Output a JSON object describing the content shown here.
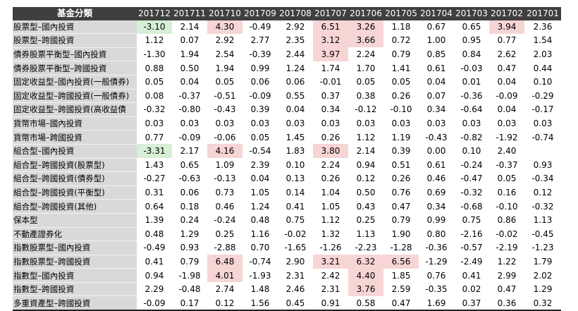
{
  "table": {
    "header_label": "基金分類",
    "periods": [
      "201712",
      "201711",
      "201710",
      "201709",
      "201708",
      "201707",
      "201706",
      "201705",
      "201704",
      "201703",
      "201702",
      "201701"
    ],
    "colors": {
      "high_bg": "#f7d5d5",
      "high_text": "#c00000",
      "low_bg": "#d6efd6",
      "low_text": "#1e7d1e"
    },
    "rows": [
      {
        "category": "股票型–國內投資",
        "values": [
          "-3.10",
          "2.14",
          "4.30",
          "-0.49",
          "2.92",
          "6.51",
          "3.26",
          "1.18",
          "0.67",
          "0.65",
          "3.94",
          "2.36"
        ],
        "marks": [
          "n",
          "",
          "p",
          "",
          "",
          "p",
          "p",
          "",
          "",
          "",
          "p",
          ""
        ]
      },
      {
        "category": "股票型–跨國投資",
        "values": [
          "1.12",
          "0.07",
          "2.92",
          "2.77",
          "2.35",
          "3.12",
          "3.66",
          "0.72",
          "1.00",
          "0.95",
          "0.77",
          "1.54"
        ],
        "marks": [
          "",
          "",
          "",
          "",
          "",
          "p",
          "p",
          "",
          "",
          "",
          "",
          ""
        ]
      },
      {
        "category": "債券股票平衡型–國內投資",
        "values": [
          "-1.30",
          "1.94",
          "2.54",
          "-0.39",
          "2.44",
          "3.97",
          "2.24",
          "0.79",
          "0.85",
          "0.84",
          "2.62",
          "2.03"
        ],
        "marks": [
          "",
          "",
          "",
          "",
          "",
          "p",
          "",
          "",
          "",
          "",
          "",
          ""
        ]
      },
      {
        "category": "債券股票平衡型–跨國投資",
        "values": [
          "0.88",
          "0.50",
          "1.94",
          "0.99",
          "1.24",
          "1.74",
          "1.70",
          "1.41",
          "0.61",
          "-0.03",
          "0.47",
          "0.44"
        ],
        "marks": [
          "",
          "",
          "",
          "",
          "",
          "",
          "",
          "",
          "",
          "",
          "",
          ""
        ]
      },
      {
        "category": "固定收益型–國內投資(一般債券)",
        "values": [
          "0.05",
          "0.04",
          "0.05",
          "0.06",
          "0.06",
          "-0.01",
          "0.05",
          "0.05",
          "0.04",
          "0.01",
          "0.04",
          "0.10"
        ],
        "marks": [
          "",
          "",
          "",
          "",
          "",
          "",
          "",
          "",
          "",
          "",
          "",
          ""
        ]
      },
      {
        "category": "固定收益型–跨國投資(一般債券)",
        "values": [
          "0.08",
          "-0.37",
          "-0.51",
          "-0.09",
          "0.55",
          "0.37",
          "0.38",
          "0.26",
          "0.07",
          "-0.36",
          "-0.09",
          "-0.29"
        ],
        "marks": [
          "",
          "",
          "",
          "",
          "",
          "",
          "",
          "",
          "",
          "",
          "",
          ""
        ]
      },
      {
        "category": "固定收益型–跨國投資(高收益債",
        "values": [
          "-0.32",
          "-0.80",
          "-0.43",
          "0.39",
          "0.04",
          "0.34",
          "-0.12",
          "-0.10",
          "0.34",
          "-0.64",
          "0.04",
          "-0.17"
        ],
        "marks": [
          "",
          "",
          "",
          "",
          "",
          "",
          "",
          "",
          "",
          "",
          "",
          ""
        ]
      },
      {
        "category": "貨幣市場–國內投資",
        "values": [
          "0.03",
          "0.03",
          "0.03",
          "0.03",
          "0.03",
          "0.03",
          "0.03",
          "0.03",
          "0.03",
          "0.03",
          "0.03",
          "0.03"
        ],
        "marks": [
          "",
          "",
          "",
          "",
          "",
          "",
          "",
          "",
          "",
          "",
          "",
          ""
        ]
      },
      {
        "category": "貨幣市場–跨國投資",
        "values": [
          "0.77",
          "-0.09",
          "-0.06",
          "0.05",
          "1.45",
          "0.26",
          "1.12",
          "1.19",
          "-0.43",
          "-0.82",
          "-1.92",
          "-0.74"
        ],
        "marks": [
          "",
          "",
          "",
          "",
          "",
          "",
          "",
          "",
          "",
          "",
          "",
          ""
        ]
      },
      {
        "category": "組合型–國內投資",
        "values": [
          "-3.31",
          "2.17",
          "4.16",
          "-0.54",
          "1.83",
          "3.80",
          "2.14",
          "0.39",
          "0.00",
          "0.10",
          "2.40",
          ""
        ],
        "marks": [
          "n",
          "",
          "p",
          "",
          "",
          "p",
          "",
          "",
          "",
          "",
          "",
          ""
        ]
      },
      {
        "category": "組合型–跨國投資(股票型)",
        "values": [
          "1.43",
          "0.65",
          "1.09",
          "2.39",
          "0.10",
          "2.24",
          "0.94",
          "0.51",
          "0.61",
          "-0.24",
          "-0.37",
          "0.93"
        ],
        "marks": [
          "",
          "",
          "",
          "",
          "",
          "",
          "",
          "",
          "",
          "",
          "",
          ""
        ]
      },
      {
        "category": "組合型–跨國投資(債券型)",
        "values": [
          "-0.27",
          "-0.63",
          "-0.13",
          "0.04",
          "0.13",
          "0.26",
          "0.12",
          "0.26",
          "0.46",
          "-0.47",
          "0.05",
          "-0.34"
        ],
        "marks": [
          "",
          "",
          "",
          "",
          "",
          "",
          "",
          "",
          "",
          "",
          "",
          ""
        ]
      },
      {
        "category": "組合型–跨國投資(平衡型)",
        "values": [
          "0.31",
          "0.06",
          "0.73",
          "1.05",
          "0.14",
          "1.04",
          "0.50",
          "0.76",
          "0.69",
          "-0.32",
          "0.16",
          "0.12"
        ],
        "marks": [
          "",
          "",
          "",
          "",
          "",
          "",
          "",
          "",
          "",
          "",
          "",
          ""
        ]
      },
      {
        "category": "組合型–跨國投資(其他)",
        "values": [
          "0.64",
          "0.18",
          "0.46",
          "1.24",
          "0.41",
          "1.05",
          "0.43",
          "0.47",
          "0.34",
          "-0.68",
          "-0.10",
          "-0.32"
        ],
        "marks": [
          "",
          "",
          "",
          "",
          "",
          "",
          "",
          "",
          "",
          "",
          "",
          ""
        ]
      },
      {
        "category": "保本型",
        "values": [
          "1.39",
          "0.24",
          "-0.24",
          "0.48",
          "0.75",
          "1.12",
          "0.25",
          "0.79",
          "0.99",
          "0.75",
          "0.86",
          "1.13"
        ],
        "marks": [
          "",
          "",
          "",
          "",
          "",
          "",
          "",
          "",
          "",
          "",
          "",
          ""
        ]
      },
      {
        "category": "不動產證券化",
        "values": [
          "0.48",
          "1.29",
          "0.25",
          "1.16",
          "-0.02",
          "1.32",
          "1.13",
          "1.90",
          "0.80",
          "-2.16",
          "-0.02",
          "-0.45"
        ],
        "marks": [
          "",
          "",
          "",
          "",
          "",
          "",
          "",
          "",
          "",
          "",
          "",
          ""
        ]
      },
      {
        "category": "指數股票型–國內投資",
        "values": [
          "-0.49",
          "0.93",
          "-2.88",
          "0.70",
          "-1.65",
          "-1.26",
          "-2.23",
          "-1.28",
          "-0.36",
          "-0.57",
          "-2.19",
          "-1.23"
        ],
        "marks": [
          "",
          "",
          "",
          "",
          "",
          "",
          "",
          "",
          "",
          "",
          "",
          ""
        ]
      },
      {
        "category": "指數股票型–跨國投資",
        "values": [
          "0.41",
          "0.79",
          "6.48",
          "-0.74",
          "2.90",
          "3.21",
          "6.32",
          "6.56",
          "-1.29",
          "-2.49",
          "1.22",
          "1.79"
        ],
        "marks": [
          "",
          "",
          "p",
          "",
          "",
          "p",
          "p",
          "p",
          "",
          "",
          "",
          ""
        ]
      },
      {
        "category": "指數型–國內投資",
        "values": [
          "0.94",
          "-1.98",
          "4.01",
          "-1.93",
          "2.31",
          "2.42",
          "4.40",
          "1.85",
          "0.76",
          "0.41",
          "2.99",
          "2.02"
        ],
        "marks": [
          "",
          "",
          "p",
          "",
          "",
          "",
          "p",
          "",
          "",
          "",
          "",
          ""
        ]
      },
      {
        "category": "指數型–跨國投資",
        "values": [
          "2.29",
          "-0.48",
          "2.74",
          "1.48",
          "2.46",
          "2.31",
          "3.76",
          "2.59",
          "-0.35",
          "0.02",
          "0.47",
          "1.29"
        ],
        "marks": [
          "",
          "",
          "",
          "",
          "",
          "",
          "p",
          "",
          "",
          "",
          "",
          ""
        ]
      },
      {
        "category": "多重資產型–跨國投資",
        "values": [
          "-0.09",
          "0.17",
          "0.12",
          "1.56",
          "0.45",
          "0.91",
          "0.58",
          "0.47",
          "1.69",
          "0.37",
          "0.36",
          "0.32"
        ],
        "marks": [
          "",
          "",
          "",
          "",
          "",
          "",
          "",
          "",
          "",
          "",
          "",
          ""
        ]
      }
    ]
  }
}
